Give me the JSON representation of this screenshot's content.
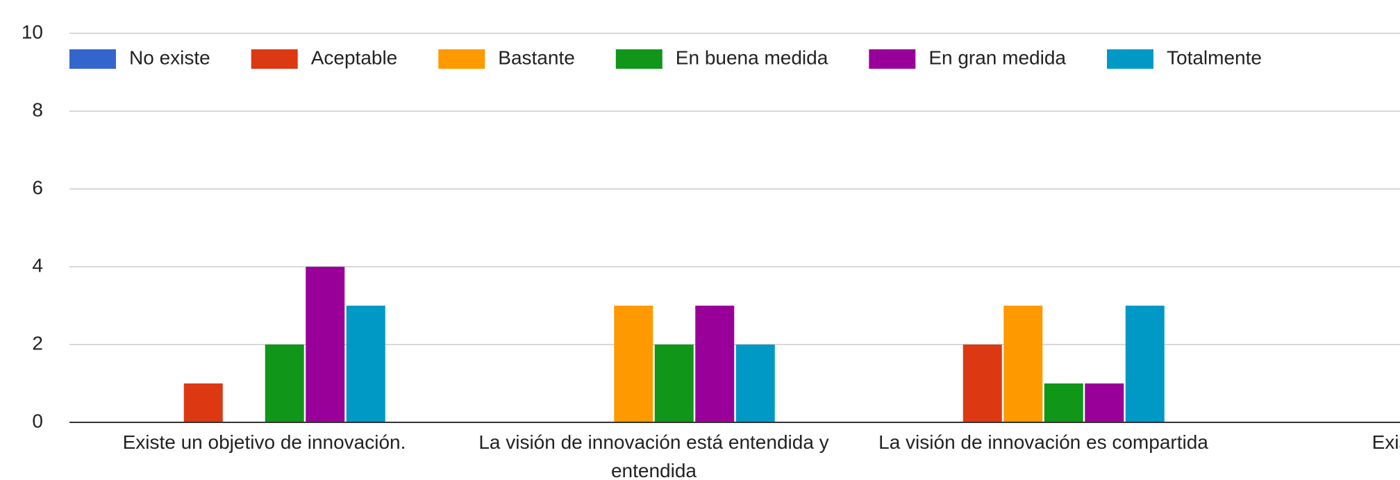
{
  "chart_data": {
    "type": "bar",
    "categories": [
      "Existe un objetivo de innovación.",
      "La visión de innovación está entendida y entendida",
      "La visión de innovación es compartida",
      "Existe libertad"
    ],
    "series": [
      {
        "name": "No existe",
        "color": "#3366cc",
        "values": [
          0,
          0,
          0,
          null
        ]
      },
      {
        "name": "Aceptable",
        "color": "#dc3912",
        "values": [
          1,
          0,
          2,
          null
        ]
      },
      {
        "name": "Bastante",
        "color": "#ff9900",
        "values": [
          0,
          3,
          3,
          null
        ]
      },
      {
        "name": "En buena medida",
        "color": "#109618",
        "values": [
          2,
          2,
          1,
          null
        ]
      },
      {
        "name": "En gran medida",
        "color": "#990099",
        "values": [
          4,
          3,
          1,
          null
        ]
      },
      {
        "name": "Totalmente",
        "color": "#0099c6",
        "values": [
          3,
          2,
          3,
          null
        ]
      }
    ],
    "ylim": [
      0,
      10
    ],
    "yticks": [
      0,
      2,
      4,
      6,
      8,
      10
    ],
    "grid": true,
    "legend": "top"
  }
}
